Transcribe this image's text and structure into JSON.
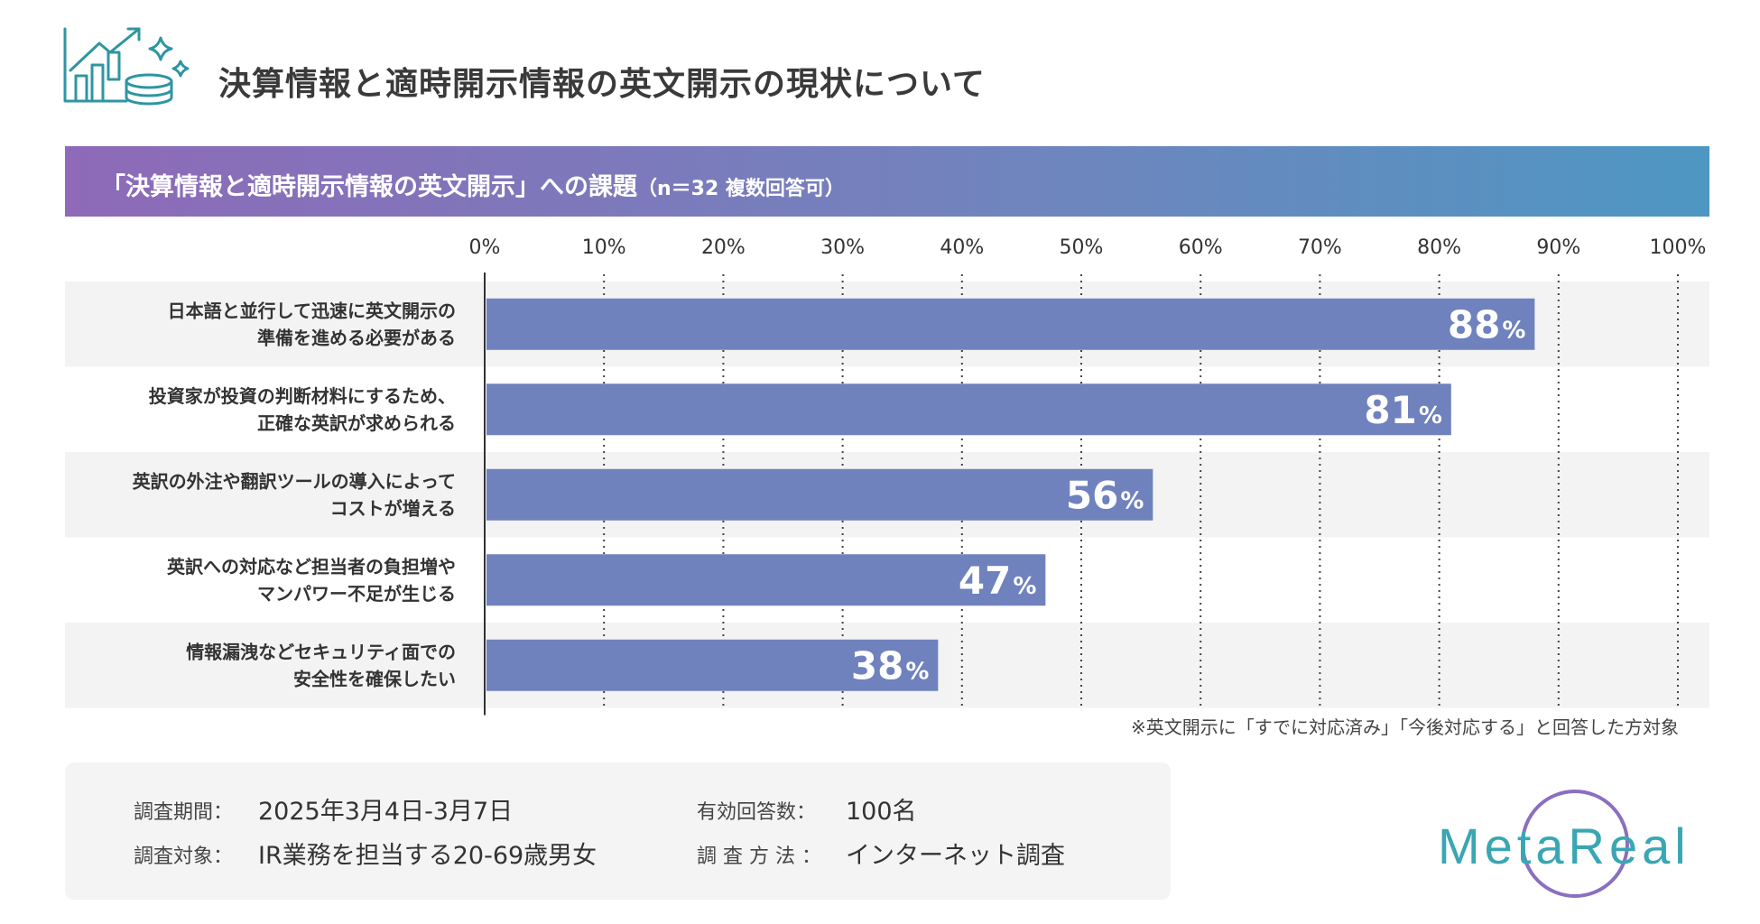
{
  "header": {
    "title": "決算情報と適時開示情報の英文開示の現状について",
    "icon": "chart-coins-icon"
  },
  "banner": {
    "title": "「決算情報と適時開示情報の英文開示」への課題",
    "subtitle": "（n＝32 複数回答可）"
  },
  "chart_data": {
    "type": "bar",
    "orientation": "horizontal",
    "title": "「決算情報と適時開示情報の英文開示」への課題（n＝32 複数回答可）",
    "x_ticks": [
      "0%",
      "10%",
      "20%",
      "30%",
      "40%",
      "50%",
      "60%",
      "70%",
      "80%",
      "90%",
      "100%"
    ],
    "xlim": [
      0,
      100
    ],
    "grid": "vertical dotted",
    "categories": [
      [
        "日本語と並行して迅速に英文開示の",
        "準備を進める必要がある"
      ],
      [
        "投資家が投資の判断材料にするため、",
        "正確な英訳が求められる"
      ],
      [
        "英訳の外注や翻訳ツールの導入によって",
        "コストが増える"
      ],
      [
        "英訳への対応など担当者の負担増や",
        "マンパワー不足が生じる"
      ],
      [
        "情報漏洩などセキュリティ面での",
        "安全性を確保したい"
      ]
    ],
    "values": [
      88,
      81,
      56,
      47,
      38
    ],
    "value_suffix": "%",
    "bar_color": "#6f82bd",
    "row_bg_color": "#f3f3f3"
  },
  "footnote": "※英文開示に「すでに対応済み」「今後対応する」と回答した方対象",
  "survey": {
    "period_label": "調査期間：",
    "period_value": "2025年3月4日-3月7日",
    "target_label": "調査対象：",
    "target_value": "IR業務を担当する20-69歳男女",
    "responses_label": "有効回答数：",
    "responses_value": "100名",
    "method_label": "調 査 方 法 ：",
    "method_value": "インターネット調査"
  },
  "logo": {
    "text": "MetaReal",
    "color": "#3aa6b3"
  }
}
